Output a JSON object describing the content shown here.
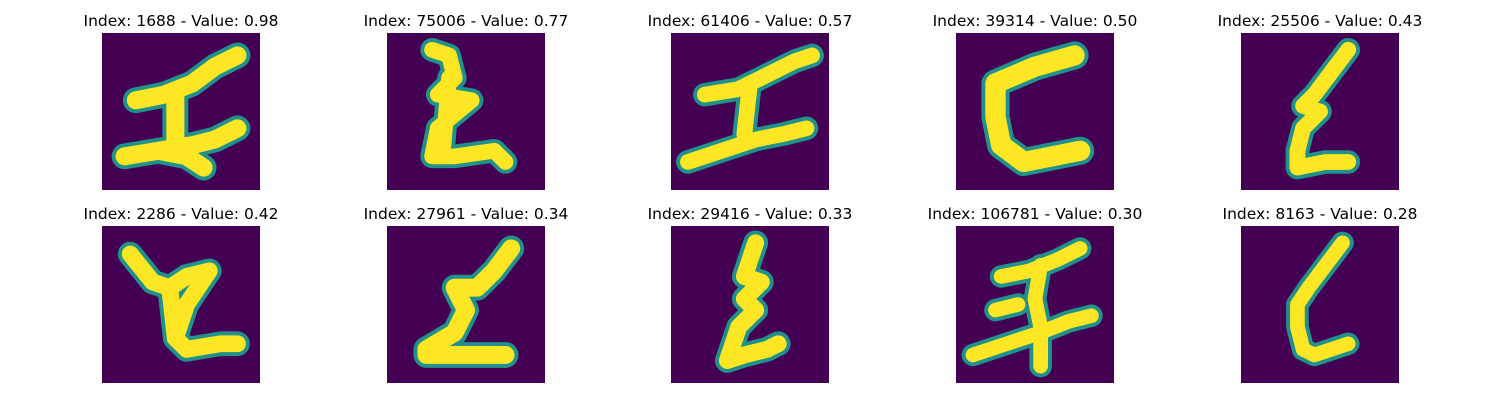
{
  "colors": {
    "background": "#440154",
    "edge_dark": "#31688e",
    "edge_mid": "#21918c",
    "edge_light": "#5ec962",
    "stroke": "#fde725"
  },
  "panels": [
    {
      "title": "Index: 1688 - Value: 0.98",
      "glyph": "I"
    },
    {
      "title": "Index: 75006 - Value: 0.77",
      "glyph": "Ƶ"
    },
    {
      "title": "Index: 61406 - Value: 0.57",
      "glyph": "I"
    },
    {
      "title": "Index: 39314 - Value: 0.50",
      "glyph": "C"
    },
    {
      "title": "Index: 25506 - Value: 0.43",
      "glyph": "ℰ"
    },
    {
      "title": "Index: 2286 - Value: 0.42",
      "glyph": "Ƶ"
    },
    {
      "title": "Index: 27961 - Value: 0.34",
      "glyph": "ℤ"
    },
    {
      "title": "Index: 29416 - Value: 0.33",
      "glyph": "ℰ"
    },
    {
      "title": "Index: 106781 - Value: 0.30",
      "glyph": "I"
    },
    {
      "title": "Index: 8163 - Value: 0.28",
      "glyph": "ℓ"
    }
  ]
}
